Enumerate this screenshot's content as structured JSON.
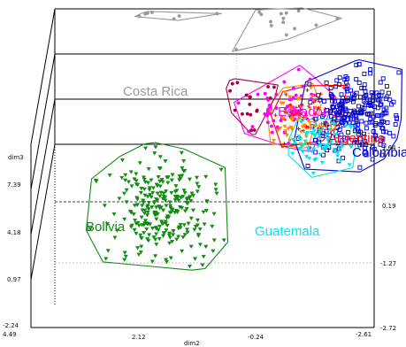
{
  "chart_data": {
    "type": "scatter",
    "projection": "3d",
    "grid": true,
    "legend": "labels placed beside each group",
    "axes": {
      "dim3": {
        "label": "dim3",
        "range": [
          -2.24,
          7.39
        ],
        "ticks": [
          "-2.24",
          "0.97",
          "4.18",
          "7.39"
        ]
      },
      "dim2": {
        "label": "dim2",
        "range": [
          -2.61,
          4.49
        ],
        "ticks": [
          "4.49",
          "2.12",
          "-0.24",
          "-2.61"
        ]
      },
      "dim1": {
        "label": "",
        "range": [
          -2.72,
          1.64
        ],
        "ticks": [
          "1.64",
          "0.19",
          "-1.27",
          "-2.72"
        ]
      }
    },
    "series": [
      {
        "name": "Costa Rica",
        "color": "#9a9a9a",
        "marker": "circle",
        "n": 220,
        "centers": [
          [
            1.8,
            2.3,
            6.2
          ],
          [
            3.4,
            3.0,
            6.6
          ],
          [
            -0.3,
            1.9,
            6.0
          ]
        ]
      },
      {
        "name": "Bolivia",
        "color": "#138a13",
        "marker": "triangle",
        "n": 280,
        "centers": [
          [
            2.0,
            -1.4,
            1.2
          ]
        ]
      },
      {
        "name": "Ecuador",
        "color": "#ff00ff",
        "marker": "circle",
        "n": 60,
        "centers": [
          [
            -0.5,
            -0.4,
            4.2
          ]
        ]
      },
      {
        "name": "Perú",
        "color": "#ff8c00",
        "marker": "triangle",
        "n": 45,
        "centers": [
          [
            -0.8,
            -0.5,
            4.1
          ]
        ]
      },
      {
        "name": "Argentina",
        "color": "#ff0000",
        "marker": "cross",
        "n": 50,
        "centers": [
          [
            -1.0,
            -0.3,
            4.0
          ]
        ]
      },
      {
        "name": "Colombia",
        "color": "#0000cc",
        "marker": "square",
        "n": 260,
        "centers": [
          [
            -2.0,
            -0.4,
            4.1
          ]
        ]
      },
      {
        "name": "Guatemala",
        "color": "#00e5ee",
        "marker": "triangle",
        "n": 70,
        "centers": [
          [
            -1.2,
            -0.9,
            3.6
          ]
        ]
      },
      {
        "name": "",
        "color": "#aa0044",
        "marker": "circle",
        "n": 18,
        "centers": [
          [
            0.2,
            -0.2,
            4.4
          ]
        ]
      }
    ]
  },
  "palette": {
    "frame": "#000000",
    "dashed_guide": "#000000",
    "dotted_guide": "#aaaaaa"
  }
}
